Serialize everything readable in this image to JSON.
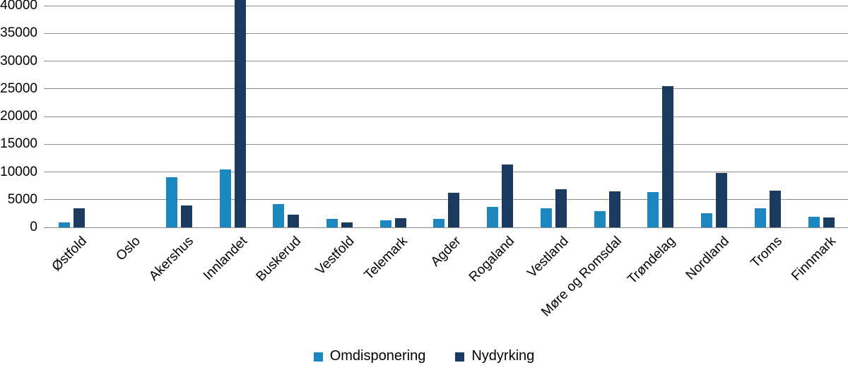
{
  "figure": {
    "background": "#ffffff",
    "axis_text_color": "#000000",
    "gridline_color": "#8f8f8f",
    "axisline_color": "#8a8a8a"
  },
  "chart_data": {
    "type": "bar",
    "title": "",
    "xlabel": "",
    "ylabel": "",
    "categories": [
      "Østfold",
      "Oslo",
      "Akershus",
      "Innlandet",
      "Buskerud",
      "Vestfold",
      "Telemark",
      "Agder",
      "Rogaland",
      "Vestland",
      "Møre og Romsdal",
      "Trøndelag",
      "Nordland",
      "Troms",
      "Finnmark"
    ],
    "series": [
      {
        "name": "Omdisponering",
        "color": "#1c86be",
        "values": [
          900,
          0,
          9000,
          10400,
          4200,
          1500,
          1300,
          1500,
          3700,
          3500,
          2900,
          6400,
          2500,
          3400,
          1900
        ]
      },
      {
        "name": "Nydyrking",
        "color": "#1b3a5f",
        "values": [
          3400,
          0,
          4000,
          40000,
          2300,
          900,
          1700,
          6300,
          11300,
          6900,
          6500,
          25500,
          9800,
          6600,
          1800
        ]
      }
    ],
    "ylim": [
      0,
      40000
    ],
    "yticks": [
      0,
      5000,
      10000,
      15000,
      20000,
      25000,
      30000,
      35000,
      40000
    ],
    "grid": "horizontal",
    "legend_position": "bottom-center",
    "clipped_at_top": [
      {
        "series": "Nydyrking",
        "category": "Innlandet"
      }
    ]
  }
}
